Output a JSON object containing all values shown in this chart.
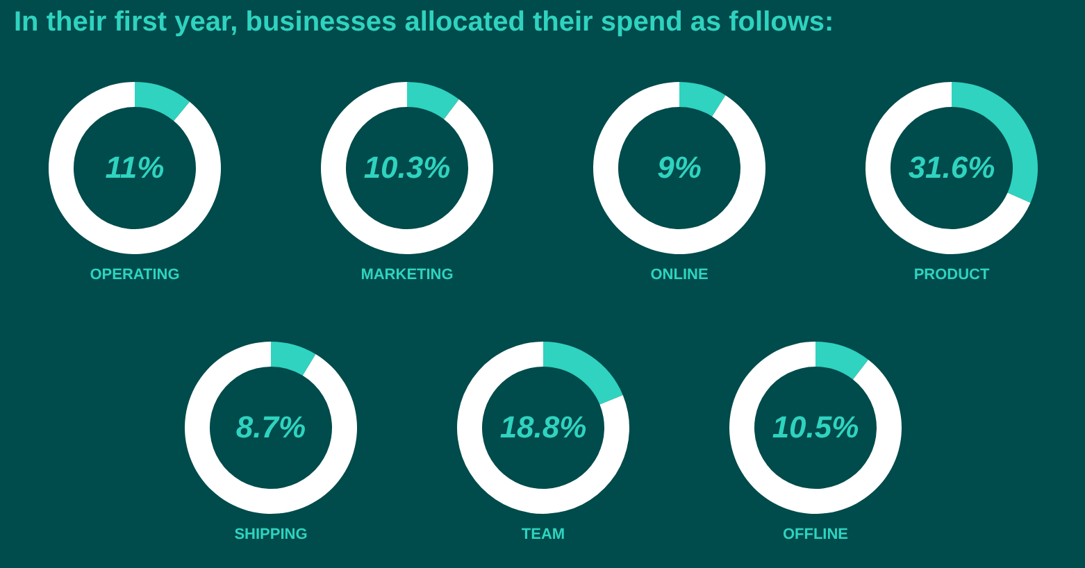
{
  "chart_data": [
    {
      "type": "other",
      "title": "In their first year, businesses allocated their spend as follows:"
    },
    {
      "type": "donut",
      "title": "OPERATING",
      "categories": [
        null,
        null
      ],
      "values": [
        11,
        89
      ],
      "colors": [
        "#2fd3bf",
        "#ffffff"
      ],
      "value_labels": [
        "11%",
        null
      ]
    },
    {
      "type": "donut",
      "title": "MARKETING",
      "categories": [
        null,
        null
      ],
      "values": [
        10.3,
        89.7
      ],
      "colors": [
        "#2fd3bf",
        "#ffffff"
      ],
      "value_labels": [
        "10.3%",
        null
      ]
    },
    {
      "type": "donut",
      "title": "ONLINE",
      "categories": [
        null,
        null
      ],
      "values": [
        9,
        91
      ],
      "colors": [
        "#2fd3bf",
        "#ffffff"
      ],
      "value_labels": [
        "9%",
        null
      ]
    },
    {
      "type": "donut",
      "title": "PRODUCT",
      "categories": [
        null,
        null
      ],
      "values": [
        31.6,
        68.4
      ],
      "colors": [
        "#2fd3bf",
        "#ffffff"
      ],
      "value_labels": [
        "31.6%",
        null
      ]
    },
    {
      "type": "donut",
      "title": "SHIPPING",
      "categories": [
        null,
        null
      ],
      "values": [
        8.7,
        91.3
      ],
      "colors": [
        "#2fd3bf",
        "#ffffff"
      ],
      "value_labels": [
        "8.7%",
        null
      ]
    },
    {
      "type": "donut",
      "title": "TEAM",
      "categories": [
        null,
        null
      ],
      "values": [
        18.8,
        81.2
      ],
      "colors": [
        "#2fd3bf",
        "#ffffff"
      ],
      "value_labels": [
        "18.8%",
        null
      ]
    },
    {
      "type": "donut",
      "title": "OFFLINE",
      "categories": [
        null,
        null
      ],
      "values": [
        10.5,
        89.5
      ],
      "colors": [
        "#2fd3bf",
        "#ffffff"
      ],
      "value_labels": [
        "10.5%",
        null
      ]
    }
  ]
}
